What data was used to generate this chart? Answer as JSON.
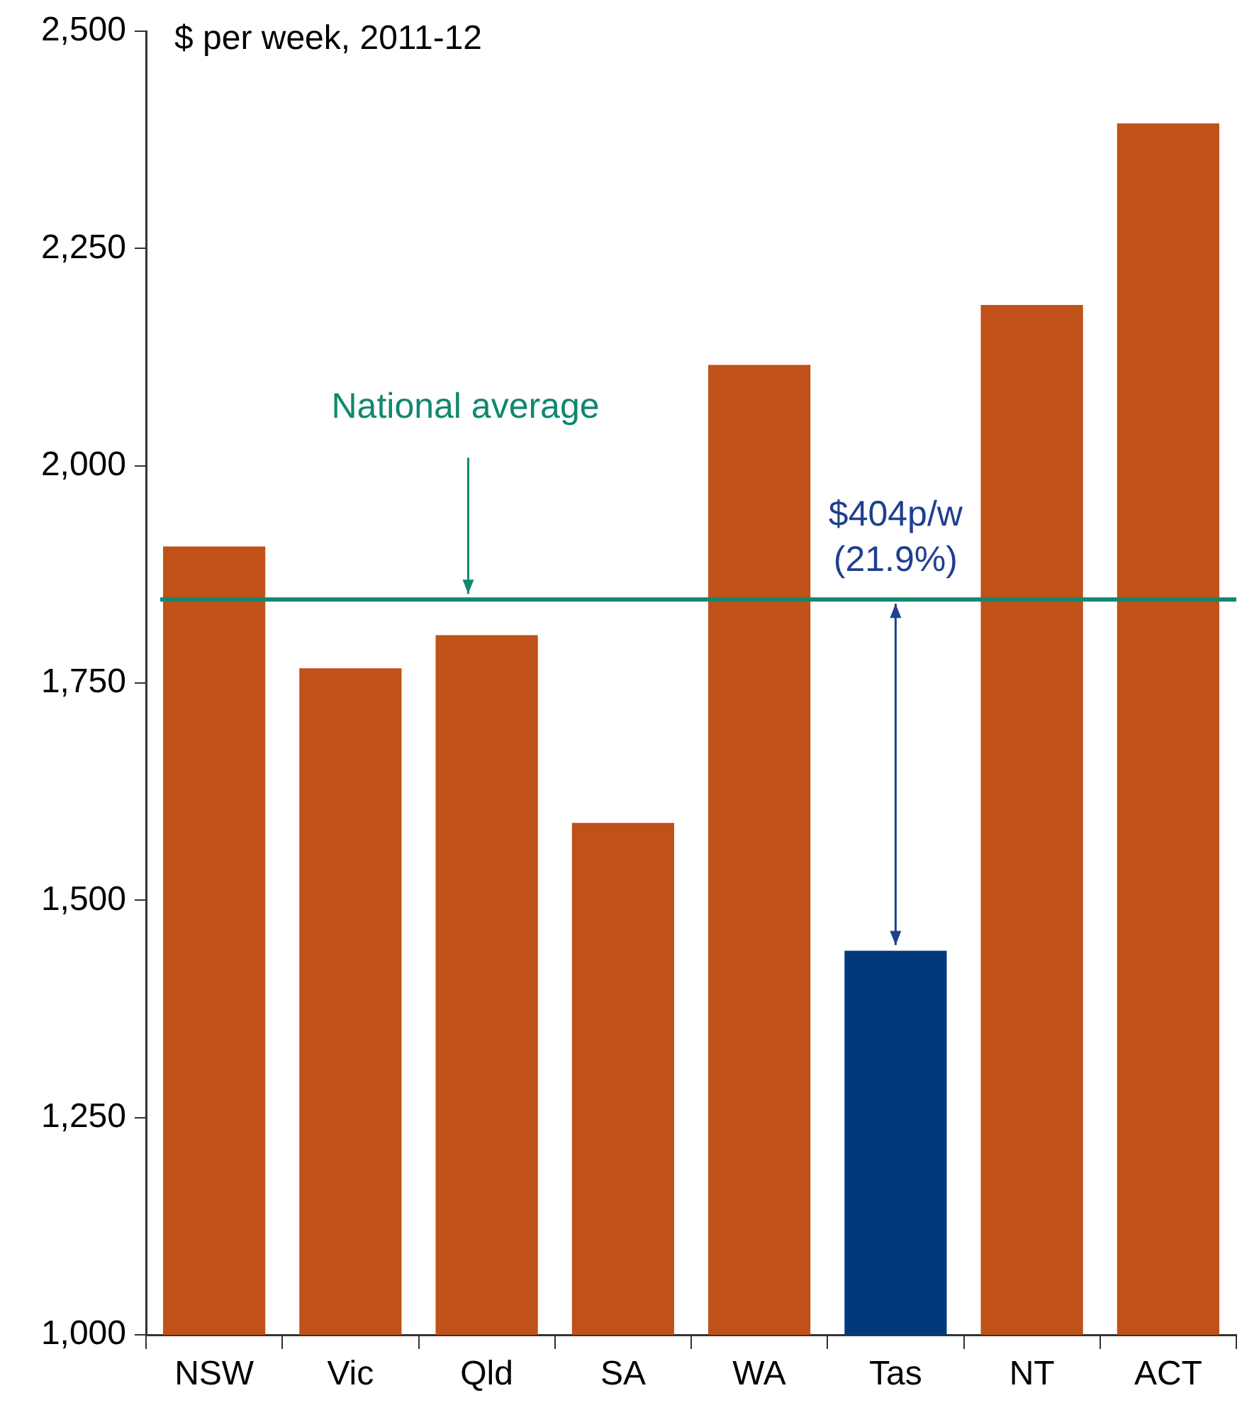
{
  "chart_data": {
    "type": "bar",
    "ylabel": "$ per week, 2011-12",
    "categories": [
      "NSW",
      "Vic",
      "Qld",
      "SA",
      "WA",
      "Tas",
      "NT",
      "ACT"
    ],
    "values": [
      1907,
      1767,
      1805,
      1589,
      2116,
      1442,
      2185,
      2394
    ],
    "colors": [
      "#bf5119",
      "#bf5119",
      "#bf5119",
      "#bf5119",
      "#bf5119",
      "#003a7d",
      "#bf5119",
      "#bf5119"
    ],
    "ylim": [
      1000,
      2500
    ],
    "yticks": [
      {
        "value": 1000,
        "label": "1,000"
      },
      {
        "value": 1250,
        "label": "1,250"
      },
      {
        "value": 1500,
        "label": "1,500"
      },
      {
        "value": 1750,
        "label": "1,750"
      },
      {
        "value": 2000,
        "label": "2,000"
      },
      {
        "value": 2250,
        "label": "2,250"
      },
      {
        "value": 2500,
        "label": "2,500"
      }
    ],
    "grid": false,
    "legend": false,
    "ref_lines": [
      {
        "axis": "y",
        "value": 1846,
        "label": "National average",
        "color": "#12876f",
        "line_style": "solid"
      }
    ],
    "annotations": [
      {
        "text": "$404p/w (21.9%)",
        "x": "Tas",
        "y": 1846
      }
    ]
  }
}
